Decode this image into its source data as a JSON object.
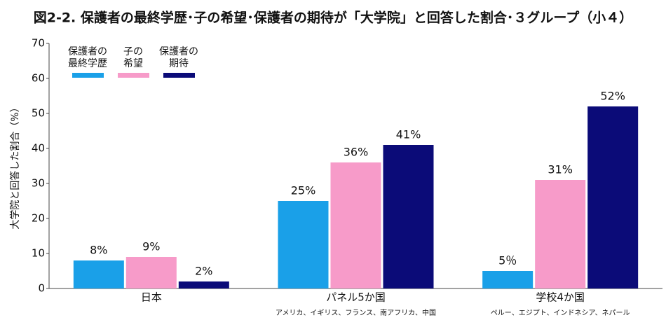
{
  "chart_data": {
    "type": "bar",
    "title": "図2-2. 保護者の最終学歴･子の希望･保護者の期待が「大学院」と回答した割合･３グループ（小４）",
    "y_label": "大学院と回答した割合（%）",
    "categories": [
      "日本",
      "パネル5か国",
      "学校4か国"
    ],
    "category_notes": [
      null,
      "アメリカ、イギリス、フランス、南アフリカ、中国",
      "ペルー、エジプト、インドネシア、ネパール"
    ],
    "series": [
      {
        "name": "保護者の\n最終学歴",
        "color": "#1aa0e8",
        "values": [
          8,
          25,
          5
        ],
        "value_labels": [
          "8%",
          "25%",
          "5％"
        ]
      },
      {
        "name": "子の\n希望",
        "color": "#f79bc9",
        "values": [
          9,
          36,
          31
        ],
        "value_labels": [
          "9%",
          "36%",
          "31%"
        ]
      },
      {
        "name": "保護者の\n期待",
        "color": "#0b0b78",
        "values": [
          2,
          41,
          52
        ],
        "value_labels": [
          "2%",
          "41%",
          "52%"
        ]
      }
    ],
    "ylim": [
      0,
      70
    ],
    "yticks": [
      0,
      10,
      20,
      30,
      40,
      50,
      60,
      70
    ],
    "grid": false,
    "legend": "top-left"
  }
}
